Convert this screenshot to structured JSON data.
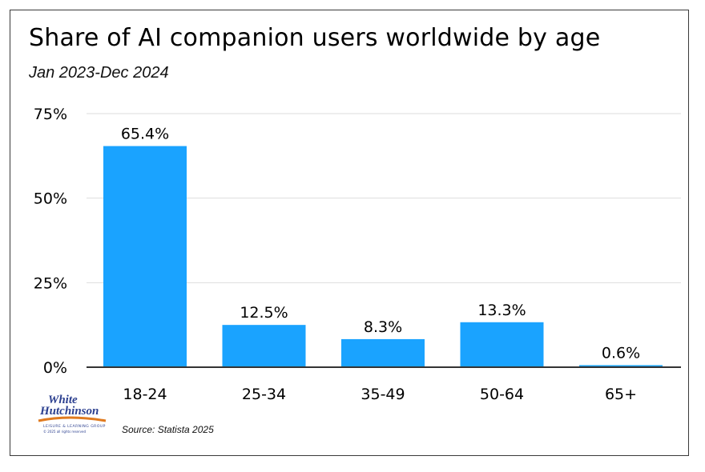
{
  "chart_data": {
    "type": "bar",
    "title": "Share of AI companion users worldwide by age",
    "subtitle": "Jan 2023-Dec 2024",
    "categories": [
      "18-24",
      "25-34",
      "35-49",
      "50-64",
      "65+"
    ],
    "values": [
      65.4,
      12.5,
      8.3,
      13.3,
      0.6
    ],
    "data_labels": [
      "65.4%",
      "12.5%",
      "8.3%",
      "13.3%",
      "0.6%"
    ],
    "yticks": [
      0,
      25,
      50,
      75
    ],
    "ytick_labels": [
      "0%",
      "25%",
      "50%",
      "75%"
    ],
    "ylim": [
      0,
      75
    ],
    "xlabel": "",
    "ylabel": "",
    "grid": true,
    "bar_color": "#1aa3ff",
    "grid_color": "#dddddd"
  },
  "footer": {
    "source": "Source: Statista 2025",
    "logo_text": "White Hutchinson",
    "logo_tagline": "LEISURE & LEARNING GROUP",
    "logo_copyright": "© 2025 all rights reserved"
  }
}
